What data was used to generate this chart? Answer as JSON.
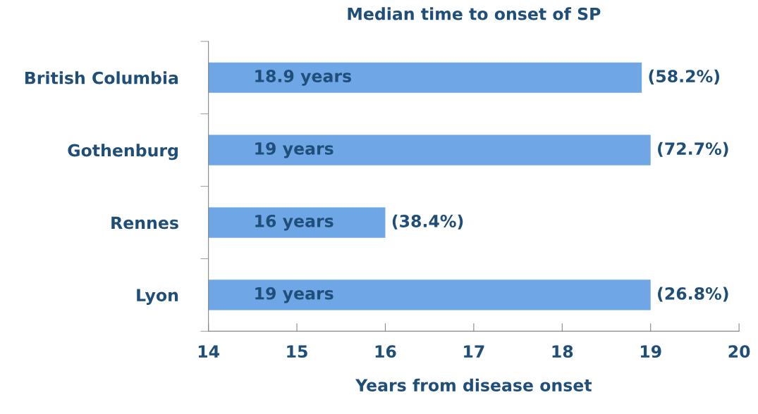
{
  "chart_data": {
    "type": "bar",
    "orientation": "horizontal",
    "title": "Median time to onset of SP",
    "xlabel": "Years from disease onset",
    "categories": [
      "British Columbia",
      "Gothenburg",
      "Rennes",
      "Lyon"
    ],
    "values": [
      18.9,
      19,
      16,
      19
    ],
    "color": "#6fa6e6",
    "value_labels": [
      "18.9 years",
      "19 years",
      "16 years",
      "19 years"
    ],
    "annotations": [
      {
        "text": "(58.2%)",
        "x": 18.9,
        "y": "British Columbia"
      },
      {
        "text": "(72.7%)",
        "x": 19,
        "y": "Gothenburg"
      },
      {
        "text": "(38.4%)",
        "x": 16,
        "y": "Rennes"
      },
      {
        "text": "(26.8%)",
        "x": 19,
        "y": "Lyon"
      }
    ],
    "xlim": [
      14,
      20
    ],
    "xticks": [
      14,
      15,
      16,
      17,
      18,
      19,
      20
    ],
    "grid": false
  }
}
